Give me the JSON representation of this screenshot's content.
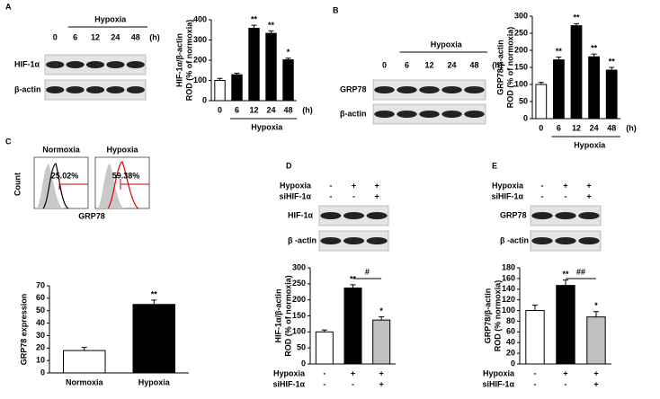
{
  "panel_labels": [
    "A",
    "B",
    "C",
    "D",
    "E"
  ],
  "blots": [
    {
      "group": "Hypoxia",
      "lanes": [
        "0",
        "6",
        "12",
        "24",
        "48"
      ],
      "unit": "(h)",
      "rows": [
        "HIF-1α",
        "β-actin"
      ]
    },
    {
      "group": "Hypoxia",
      "lanes": [
        "0",
        "6",
        "12",
        "24",
        "48"
      ],
      "unit": "(h)",
      "rows": [
        "GRP78",
        "β-actin"
      ]
    },
    {
      "conditions": [
        {
          "name": "Hypoxia",
          "signs": [
            "-",
            "+",
            "+"
          ]
        },
        {
          "name": "siHIF-1α",
          "signs": [
            "-",
            "-",
            "+"
          ]
        }
      ],
      "rows": [
        "HIF-1α",
        "β -actin"
      ]
    },
    {
      "conditions": [
        {
          "name": "Hypoxia",
          "signs": [
            "-",
            "+",
            "+"
          ]
        },
        {
          "name": "siHIF-1α",
          "signs": [
            "-",
            "-",
            "+"
          ]
        }
      ],
      "rows": [
        "GRP78",
        "β -actin"
      ]
    }
  ],
  "flow": {
    "ylabel": "Count",
    "xlabel": "GRP78",
    "panels": [
      {
        "title": "Normoxia",
        "percent": "25.02%"
      },
      {
        "title": "Hypoxia",
        "percent": "59.38%"
      }
    ]
  },
  "chart_data": [
    {
      "type": "bar",
      "ylabel": [
        "HIF-1α/β-actin",
        "ROD (% of normoxia)"
      ],
      "categories": [
        "0",
        "6",
        "12",
        "24",
        "48"
      ],
      "values": [
        100,
        128,
        358,
        333,
        202
      ],
      "errors": [
        10,
        8,
        15,
        12,
        8
      ],
      "colors": [
        "#ffffff",
        "#000000",
        "#000000",
        "#000000",
        "#000000"
      ],
      "ylim": [
        0,
        400
      ],
      "yticks": [
        0,
        100,
        200,
        300,
        400
      ],
      "xlabel": "Hypoxia",
      "xunit": "(h)",
      "annotations": [
        {
          "index": 2,
          "text": "**"
        },
        {
          "index": 3,
          "text": "**"
        },
        {
          "index": 4,
          "text": "*"
        }
      ]
    },
    {
      "type": "bar",
      "ylabel": [
        "GRP78/β-actin",
        "ROD (% of normoxia)"
      ],
      "categories": [
        "0",
        "6",
        "12",
        "24",
        "48"
      ],
      "values": [
        100,
        172,
        272,
        181,
        142
      ],
      "errors": [
        6,
        8,
        6,
        8,
        8
      ],
      "colors": [
        "#ffffff",
        "#000000",
        "#000000",
        "#000000",
        "#000000"
      ],
      "ylim": [
        0,
        300
      ],
      "yticks": [
        0,
        50,
        100,
        150,
        200,
        250,
        300
      ],
      "xlabel": "Hypoxia",
      "xunit": "(h)",
      "annotations": [
        {
          "index": 1,
          "text": "**"
        },
        {
          "index": 2,
          "text": "**"
        },
        {
          "index": 3,
          "text": "**"
        },
        {
          "index": 4,
          "text": "**"
        }
      ]
    },
    {
      "type": "bar",
      "ylabel": [
        "GRP78 expression"
      ],
      "categories": [
        "Normoxia",
        "Hypoxia"
      ],
      "values": [
        18,
        55
      ],
      "errors": [
        2.5,
        3.5
      ],
      "colors": [
        "#ffffff",
        "#000000"
      ],
      "ylim": [
        0,
        70
      ],
      "yticks": [
        0,
        10,
        20,
        30,
        40,
        50,
        60,
        70
      ],
      "annotations": [
        {
          "index": 1,
          "text": "**"
        }
      ]
    },
    {
      "type": "bar",
      "ylabel": [
        "HIF-1α/β-actin",
        "ROD (% of normoxia)"
      ],
      "categories": [
        null,
        null,
        null
      ],
      "values": [
        100,
        237,
        137
      ],
      "errors": [
        6,
        10,
        10
      ],
      "colors": [
        "#ffffff",
        "#000000",
        "#c0c0c0"
      ],
      "ylim": [
        0,
        300
      ],
      "yticks": [
        0,
        50,
        100,
        150,
        200,
        250,
        300
      ],
      "conditions": [
        {
          "name": "Hypoxia",
          "signs": [
            "-",
            "+",
            "+"
          ]
        },
        {
          "name": "siHIF-1α",
          "signs": [
            "-",
            "-",
            "+"
          ]
        }
      ],
      "annotations": [
        {
          "index": 1,
          "text": "**"
        },
        {
          "index": 2,
          "text": "*"
        }
      ],
      "bracket": {
        "from": 1,
        "to": 2,
        "text": "#"
      }
    },
    {
      "type": "bar",
      "ylabel": [
        "GRP78/β-actin",
        "ROD (% normoxia)"
      ],
      "categories": [
        null,
        null,
        null
      ],
      "values": [
        100,
        147,
        88
      ],
      "errors": [
        10,
        10,
        10
      ],
      "colors": [
        "#ffffff",
        "#000000",
        "#c0c0c0"
      ],
      "ylim": [
        0,
        180
      ],
      "yticks": [
        0,
        20,
        40,
        60,
        80,
        100,
        120,
        140,
        160,
        180
      ],
      "conditions": [
        {
          "name": "Hypoxia",
          "signs": [
            "-",
            "+",
            "+"
          ]
        },
        {
          "name": "siHIF-1α",
          "signs": [
            "-",
            "-",
            "+"
          ]
        }
      ],
      "annotations": [
        {
          "index": 1,
          "text": "**"
        },
        {
          "index": 2,
          "text": "*"
        }
      ],
      "bracket": {
        "from": 1,
        "to": 2,
        "text": "##"
      }
    }
  ]
}
